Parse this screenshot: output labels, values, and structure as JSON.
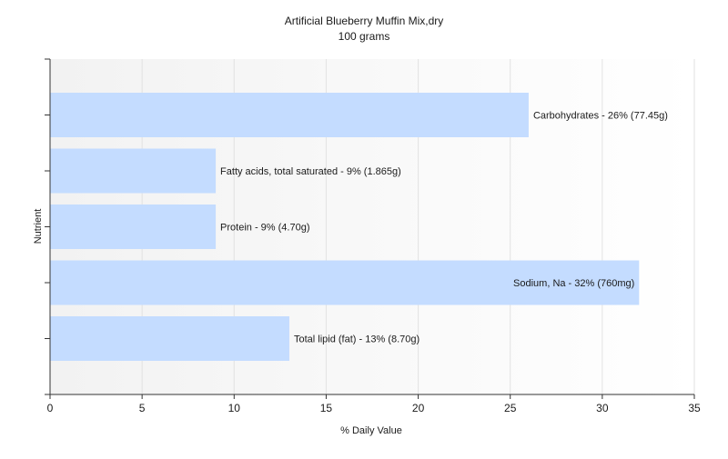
{
  "chart_data": {
    "type": "bar",
    "orientation": "horizontal",
    "title": "Artificial Blueberry Muffin Mix,dry",
    "subtitle": "100 grams",
    "xlabel": "% Daily Value",
    "ylabel": "Nutrient",
    "xlim": [
      0,
      35
    ],
    "xticks": [
      0,
      5,
      10,
      15,
      20,
      25,
      30,
      35
    ],
    "grid": true,
    "legend": "none",
    "bar_color": "#c4dcff",
    "categories": [
      "Carbohydrates",
      "Fatty acids, total saturated",
      "Protein",
      "Sodium, Na",
      "Total lipid (fat)"
    ],
    "values": [
      26,
      9,
      9,
      32,
      13
    ],
    "labels": [
      "Carbohydrates - 26% (77.45g)",
      "Fatty acids, total saturated - 9% (1.865g)",
      "Protein - 9% (4.70g)",
      "Sodium, Na - 32% (760mg)",
      "Total lipid (fat) - 13% (8.70g)"
    ],
    "label_inside": [
      false,
      false,
      false,
      true,
      false
    ]
  }
}
